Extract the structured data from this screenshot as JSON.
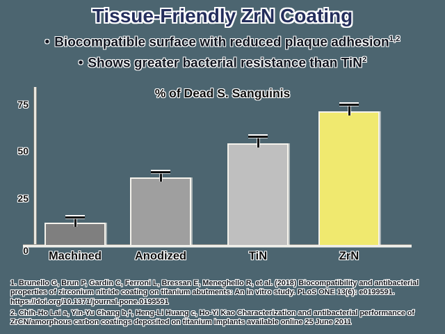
{
  "title": "Tissue-Friendly ZrN Coating",
  "bullets": [
    {
      "marker": "•",
      "text": "Biocompatible surface with reduced plaque adhesion",
      "superscript": "1,2"
    },
    {
      "marker": "•",
      "text": "Shows greater bacterial resistance than TiN",
      "superscript": "2"
    }
  ],
  "chart_data": {
    "type": "bar",
    "title": "% of Dead S. Sanguinis",
    "categories": [
      "Machined",
      "Anodized",
      "TiN",
      "ZrN"
    ],
    "values": [
      12,
      36,
      54,
      71
    ],
    "error_bars": [
      2,
      2,
      3,
      3
    ],
    "bar_colors": [
      "#7f7f7f",
      "#9f9f9f",
      "#bfbfbf",
      "#f0e96f"
    ],
    "yticks": [
      0,
      25,
      50,
      75
    ],
    "ylim": [
      0,
      83
    ],
    "xlabel": "",
    "ylabel": "",
    "grid": false,
    "legend": false
  },
  "footnotes": [
    "1. Brunello G, Brun P, Gardin C, Ferroni L, Bressan E, Meneghello R, et al. (2018) Biocompatibility and antibacterial properties of zirconium nitride coating on titanium abutments: An in vitro study. PLoS ONE 13(6): e0199591. https://doi.org/10.1371/journal.pone.0199591",
    "2. Chih-Ho Lai a, Yin-Yu Chang b,*, Heng-Li Huang c, Ho-Yi Kao Characterization and antibacterial performance of ZrCN/amorphous carbon coatings deposited on titanium implants available online 25 June 2011"
  ],
  "colors": {
    "background": "#4c6570",
    "title": "#242e5c",
    "body_text": "#10141f",
    "chart_text": "#0d0d0d",
    "axis_line": "#efede6",
    "bar_outline": "#f5f3ec"
  }
}
